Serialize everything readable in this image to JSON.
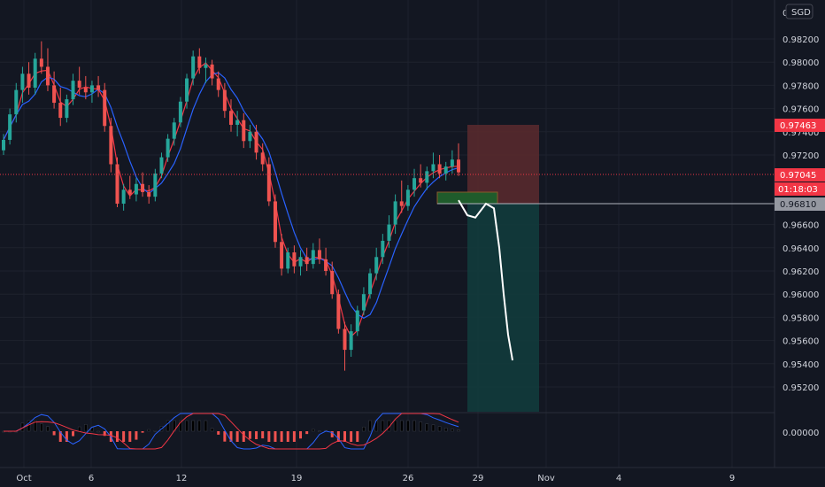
{
  "chart_data": {
    "type": "candlestick",
    "currency_label": "SGD",
    "price_axis_top_label": "0",
    "price_ticks": [
      "0.98200",
      "0.98000",
      "0.97800",
      "0.97600",
      "0.97400",
      "0.97200",
      "0.96600",
      "0.96400",
      "0.96200",
      "0.96000",
      "0.95800",
      "0.95600",
      "0.95400",
      "0.95200"
    ],
    "time_ticks": [
      "Oct",
      "6",
      "12",
      "19",
      "26",
      "29",
      "Nov",
      "4",
      "9"
    ],
    "price_tags": {
      "stop_loss": "0.97463",
      "last_price": "0.97045",
      "countdown": "01:18:03",
      "entry": "0.96810"
    },
    "macd_axis_label": "0.00000",
    "candles": [
      [
        0.9724,
        0.9738,
        0.972,
        0.9733
      ],
      [
        0.9733,
        0.976,
        0.9729,
        0.9755
      ],
      [
        0.9755,
        0.9782,
        0.9748,
        0.9776
      ],
      [
        0.9776,
        0.9796,
        0.9765,
        0.979
      ],
      [
        0.979,
        0.98,
        0.9772,
        0.9778
      ],
      [
        0.9778,
        0.9808,
        0.9772,
        0.9803
      ],
      [
        0.9803,
        0.9818,
        0.979,
        0.9796
      ],
      [
        0.9796,
        0.9812,
        0.9775,
        0.978
      ],
      [
        0.978,
        0.9792,
        0.976,
        0.9765
      ],
      [
        0.9765,
        0.9778,
        0.9745,
        0.9752
      ],
      [
        0.9752,
        0.9772,
        0.9748,
        0.9768
      ],
      [
        0.9768,
        0.979,
        0.9763,
        0.9784
      ],
      [
        0.9784,
        0.9796,
        0.9772,
        0.9778
      ],
      [
        0.9778,
        0.9788,
        0.9768,
        0.9774
      ],
      [
        0.9774,
        0.9784,
        0.9765,
        0.978
      ],
      [
        0.978,
        0.9788,
        0.977,
        0.9776
      ],
      [
        0.9776,
        0.9782,
        0.974,
        0.9745
      ],
      [
        0.9745,
        0.9752,
        0.9705,
        0.9712
      ],
      [
        0.9712,
        0.9718,
        0.9675,
        0.9678
      ],
      [
        0.9678,
        0.9695,
        0.9672,
        0.969
      ],
      [
        0.969,
        0.9702,
        0.9682,
        0.9686
      ],
      [
        0.9686,
        0.97,
        0.968,
        0.9695
      ],
      [
        0.9695,
        0.9705,
        0.9684,
        0.9688
      ],
      [
        0.9688,
        0.9694,
        0.9678,
        0.9684
      ],
      [
        0.9684,
        0.9708,
        0.968,
        0.9704
      ],
      [
        0.9704,
        0.9722,
        0.97,
        0.9718
      ],
      [
        0.9718,
        0.9738,
        0.9714,
        0.9734
      ],
      [
        0.9734,
        0.9752,
        0.9728,
        0.9748
      ],
      [
        0.9748,
        0.977,
        0.9744,
        0.9766
      ],
      [
        0.9766,
        0.979,
        0.976,
        0.9786
      ],
      [
        0.9786,
        0.981,
        0.978,
        0.9805
      ],
      [
        0.9805,
        0.9812,
        0.979,
        0.9795
      ],
      [
        0.9795,
        0.9804,
        0.9782,
        0.9798
      ],
      [
        0.9798,
        0.9802,
        0.978,
        0.9786
      ],
      [
        0.9786,
        0.9792,
        0.977,
        0.9776
      ],
      [
        0.9776,
        0.9782,
        0.9752,
        0.9758
      ],
      [
        0.9758,
        0.9768,
        0.974,
        0.9746
      ],
      [
        0.9746,
        0.9758,
        0.9736,
        0.975
      ],
      [
        0.975,
        0.9756,
        0.9726,
        0.9732
      ],
      [
        0.9732,
        0.9746,
        0.9726,
        0.974
      ],
      [
        0.974,
        0.9746,
        0.9716,
        0.9722
      ],
      [
        0.9722,
        0.973,
        0.9706,
        0.9712
      ],
      [
        0.9712,
        0.9718,
        0.9676,
        0.968
      ],
      [
        0.968,
        0.9686,
        0.964,
        0.9645
      ],
      [
        0.9645,
        0.9652,
        0.9616,
        0.9622
      ],
      [
        0.9622,
        0.964,
        0.9618,
        0.9636
      ],
      [
        0.9636,
        0.9642,
        0.9618,
        0.9624
      ],
      [
        0.9624,
        0.9638,
        0.9616,
        0.9632
      ],
      [
        0.9632,
        0.964,
        0.962,
        0.9626
      ],
      [
        0.9626,
        0.9644,
        0.9622,
        0.9638
      ],
      [
        0.9638,
        0.9648,
        0.9626,
        0.963
      ],
      [
        0.963,
        0.964,
        0.9616,
        0.962
      ],
      [
        0.962,
        0.9628,
        0.9596,
        0.96
      ],
      [
        0.96,
        0.9604,
        0.9566,
        0.957
      ],
      [
        0.957,
        0.9576,
        0.9534,
        0.9552
      ],
      [
        0.9552,
        0.9574,
        0.9546,
        0.9568
      ],
      [
        0.9568,
        0.959,
        0.9564,
        0.9586
      ],
      [
        0.9586,
        0.9606,
        0.9582,
        0.96
      ],
      [
        0.96,
        0.9622,
        0.9596,
        0.9618
      ],
      [
        0.9618,
        0.964,
        0.9612,
        0.9632
      ],
      [
        0.9632,
        0.9652,
        0.9626,
        0.9646
      ],
      [
        0.9646,
        0.9668,
        0.964,
        0.966
      ],
      [
        0.966,
        0.9686,
        0.9652,
        0.968
      ],
      [
        0.968,
        0.9698,
        0.967,
        0.9676
      ],
      [
        0.9676,
        0.9694,
        0.9672,
        0.969
      ],
      [
        0.969,
        0.9708,
        0.9684,
        0.97
      ],
      [
        0.97,
        0.9712,
        0.9692,
        0.9696
      ],
      [
        0.9696,
        0.971,
        0.969,
        0.9706
      ],
      [
        0.9706,
        0.9722,
        0.97,
        0.9712
      ],
      [
        0.9712,
        0.972,
        0.97,
        0.9704
      ],
      [
        0.9704,
        0.9714,
        0.9698,
        0.971
      ],
      [
        0.971,
        0.9724,
        0.9704,
        0.9716
      ],
      [
        0.9716,
        0.973,
        0.9702,
        0.9705
      ]
    ],
    "position": {
      "entry": 0.9681,
      "stop": 0.97463,
      "target": 0.951
    },
    "projection_path": [
      [
        0.9681,
        0
      ],
      [
        0.9668,
        1
      ],
      [
        0.9666,
        2
      ],
      [
        0.9678,
        3
      ],
      [
        0.9674,
        4
      ],
      [
        0.964,
        5
      ],
      [
        0.96,
        6
      ],
      [
        0.9565,
        7
      ],
      [
        0.9543,
        8
      ]
    ]
  }
}
